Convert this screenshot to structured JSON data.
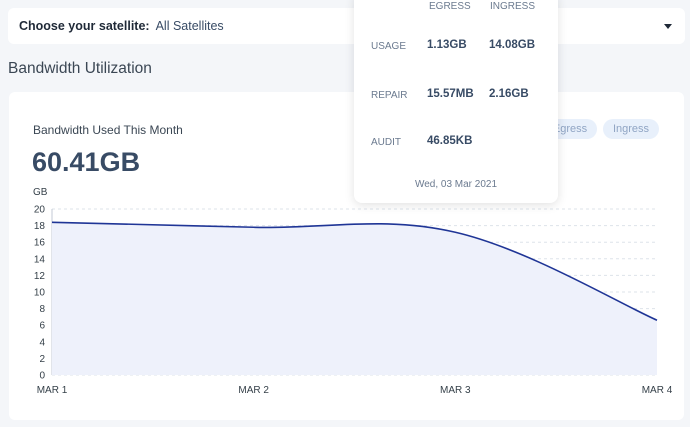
{
  "satellite": {
    "label": "Choose your satellite:",
    "value": "All Satellites"
  },
  "section_title": "Bandwidth Utilization",
  "card": {
    "title": "Bandwidth Used This Month",
    "total": "60.41GB",
    "toggles": {
      "egress": "Egress",
      "ingress": "Ingress"
    }
  },
  "tooltip": {
    "headers": {
      "egress": "EGRESS",
      "ingress": "INGRESS"
    },
    "rows": [
      {
        "label": "USAGE",
        "egress": "1.13GB",
        "ingress": "14.08GB"
      },
      {
        "label": "REPAIR",
        "egress": "15.57MB",
        "ingress": "2.16GB"
      },
      {
        "label": "AUDIT",
        "egress": "46.85KB",
        "ingress": ""
      }
    ],
    "date": "Wed, 03 Mar 2021"
  },
  "chart_data": {
    "type": "area",
    "ylabel": "GB",
    "ylim": [
      0,
      20
    ],
    "yticks": [
      "0",
      "2",
      "4",
      "6",
      "8",
      "10",
      "12",
      "14",
      "16",
      "18",
      "20"
    ],
    "x": [
      "MAR 1",
      "MAR 2",
      "MAR 3",
      "MAR 4"
    ],
    "series": [
      {
        "values": [
          18.4,
          17.8,
          17.2,
          6.6
        ]
      }
    ],
    "colors": {
      "line": "#1f3596",
      "fill": "#eef1fb",
      "grid": "#dde3ea"
    }
  }
}
